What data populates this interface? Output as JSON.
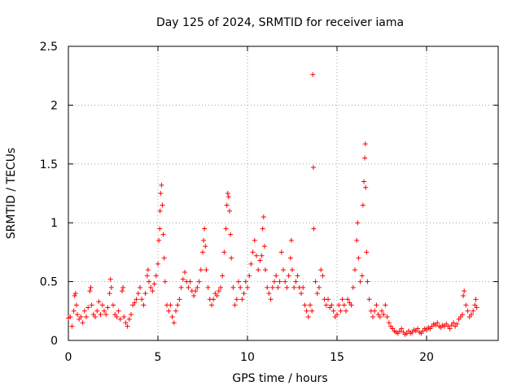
{
  "chart_data": {
    "type": "scatter",
    "title": "Day 125 of 2024, SRMTID for receiver iama",
    "xlabel": "GPS time / hours",
    "ylabel": "SRMTID / TECUs",
    "xlim": [
      0,
      24
    ],
    "ylim": [
      0,
      2.5
    ],
    "grid": true,
    "marker": "+",
    "color": "#ff0000",
    "xticks": [
      0,
      5,
      10,
      15,
      20
    ],
    "xtick_labels": [
      "0",
      "5",
      "10",
      "15",
      "20"
    ],
    "yticks": [
      0,
      0.5,
      1,
      1.5,
      2,
      2.5
    ],
    "ytick_labels": [
      "0",
      "0.5",
      "1",
      "1.5",
      "2",
      "2.5"
    ],
    "series": [
      {
        "name": "SRMTID",
        "points": [
          [
            0.0,
            0.19
          ],
          [
            0.1,
            0.2
          ],
          [
            0.2,
            0.12
          ],
          [
            0.3,
            0.25
          ],
          [
            0.35,
            0.38
          ],
          [
            0.4,
            0.4
          ],
          [
            0.45,
            0.3
          ],
          [
            0.5,
            0.22
          ],
          [
            0.6,
            0.18
          ],
          [
            0.7,
            0.2
          ],
          [
            0.8,
            0.15
          ],
          [
            0.9,
            0.25
          ],
          [
            1.0,
            0.2
          ],
          [
            1.1,
            0.28
          ],
          [
            1.2,
            0.42
          ],
          [
            1.25,
            0.45
          ],
          [
            1.3,
            0.3
          ],
          [
            1.4,
            0.22
          ],
          [
            1.5,
            0.2
          ],
          [
            1.6,
            0.25
          ],
          [
            1.7,
            0.33
          ],
          [
            1.8,
            0.22
          ],
          [
            1.9,
            0.3
          ],
          [
            2.0,
            0.25
          ],
          [
            2.1,
            0.22
          ],
          [
            2.2,
            0.28
          ],
          [
            2.3,
            0.4
          ],
          [
            2.35,
            0.52
          ],
          [
            2.4,
            0.45
          ],
          [
            2.5,
            0.3
          ],
          [
            2.6,
            0.22
          ],
          [
            2.7,
            0.2
          ],
          [
            2.8,
            0.25
          ],
          [
            2.9,
            0.18
          ],
          [
            3.0,
            0.42
          ],
          [
            3.05,
            0.45
          ],
          [
            3.1,
            0.2
          ],
          [
            3.2,
            0.15
          ],
          [
            3.3,
            0.12
          ],
          [
            3.4,
            0.18
          ],
          [
            3.5,
            0.22
          ],
          [
            3.6,
            0.3
          ],
          [
            3.7,
            0.32
          ],
          [
            3.8,
            0.35
          ],
          [
            3.9,
            0.4
          ],
          [
            4.0,
            0.45
          ],
          [
            4.1,
            0.35
          ],
          [
            4.2,
            0.3
          ],
          [
            4.3,
            0.4
          ],
          [
            4.4,
            0.55
          ],
          [
            4.45,
            0.6
          ],
          [
            4.5,
            0.5
          ],
          [
            4.6,
            0.45
          ],
          [
            4.7,
            0.42
          ],
          [
            4.8,
            0.48
          ],
          [
            4.9,
            0.55
          ],
          [
            5.0,
            0.65
          ],
          [
            5.05,
            0.85
          ],
          [
            5.1,
            0.95
          ],
          [
            5.12,
            1.1
          ],
          [
            5.15,
            1.25
          ],
          [
            5.2,
            1.32
          ],
          [
            5.25,
            1.15
          ],
          [
            5.3,
            0.9
          ],
          [
            5.35,
            0.7
          ],
          [
            5.4,
            0.5
          ],
          [
            5.5,
            0.3
          ],
          [
            5.6,
            0.25
          ],
          [
            5.7,
            0.3
          ],
          [
            5.8,
            0.2
          ],
          [
            5.9,
            0.15
          ],
          [
            6.0,
            0.25
          ],
          [
            6.1,
            0.3
          ],
          [
            6.2,
            0.35
          ],
          [
            6.3,
            0.45
          ],
          [
            6.4,
            0.52
          ],
          [
            6.5,
            0.58
          ],
          [
            6.6,
            0.5
          ],
          [
            6.7,
            0.45
          ],
          [
            6.8,
            0.5
          ],
          [
            6.9,
            0.42
          ],
          [
            7.0,
            0.38
          ],
          [
            7.1,
            0.42
          ],
          [
            7.2,
            0.45
          ],
          [
            7.3,
            0.5
          ],
          [
            7.4,
            0.6
          ],
          [
            7.5,
            0.75
          ],
          [
            7.55,
            0.85
          ],
          [
            7.6,
            0.95
          ],
          [
            7.65,
            0.8
          ],
          [
            7.7,
            0.6
          ],
          [
            7.8,
            0.45
          ],
          [
            7.9,
            0.35
          ],
          [
            8.0,
            0.3
          ],
          [
            8.1,
            0.35
          ],
          [
            8.2,
            0.4
          ],
          [
            8.3,
            0.38
          ],
          [
            8.4,
            0.42
          ],
          [
            8.5,
            0.45
          ],
          [
            8.6,
            0.55
          ],
          [
            8.7,
            0.75
          ],
          [
            8.8,
            0.95
          ],
          [
            8.85,
            1.15
          ],
          [
            8.9,
            1.25
          ],
          [
            8.95,
            1.22
          ],
          [
            9.0,
            1.1
          ],
          [
            9.05,
            0.9
          ],
          [
            9.1,
            0.7
          ],
          [
            9.2,
            0.45
          ],
          [
            9.3,
            0.3
          ],
          [
            9.4,
            0.35
          ],
          [
            9.5,
            0.5
          ],
          [
            9.6,
            0.45
          ],
          [
            9.7,
            0.35
          ],
          [
            9.8,
            0.4
          ],
          [
            9.9,
            0.5
          ],
          [
            10.0,
            0.45
          ],
          [
            10.1,
            0.55
          ],
          [
            10.2,
            0.65
          ],
          [
            10.3,
            0.75
          ],
          [
            10.4,
            0.85
          ],
          [
            10.5,
            0.72
          ],
          [
            10.6,
            0.6
          ],
          [
            10.7,
            0.68
          ],
          [
            10.8,
            0.72
          ],
          [
            10.85,
            0.95
          ],
          [
            10.9,
            1.05
          ],
          [
            10.95,
            0.8
          ],
          [
            11.0,
            0.6
          ],
          [
            11.1,
            0.45
          ],
          [
            11.2,
            0.4
          ],
          [
            11.3,
            0.35
          ],
          [
            11.4,
            0.45
          ],
          [
            11.5,
            0.5
          ],
          [
            11.6,
            0.55
          ],
          [
            11.7,
            0.45
          ],
          [
            11.8,
            0.5
          ],
          [
            11.9,
            0.75
          ],
          [
            12.0,
            0.6
          ],
          [
            12.1,
            0.5
          ],
          [
            12.2,
            0.45
          ],
          [
            12.3,
            0.55
          ],
          [
            12.4,
            0.7
          ],
          [
            12.45,
            0.85
          ],
          [
            12.5,
            0.6
          ],
          [
            12.6,
            0.45
          ],
          [
            12.7,
            0.5
          ],
          [
            12.8,
            0.55
          ],
          [
            12.9,
            0.45
          ],
          [
            13.0,
            0.4
          ],
          [
            13.1,
            0.45
          ],
          [
            13.2,
            0.3
          ],
          [
            13.3,
            0.25
          ],
          [
            13.4,
            0.2
          ],
          [
            13.5,
            0.3
          ],
          [
            13.6,
            0.25
          ],
          [
            13.65,
            2.26
          ],
          [
            13.68,
            1.47
          ],
          [
            13.7,
            0.95
          ],
          [
            13.8,
            0.5
          ],
          [
            13.9,
            0.4
          ],
          [
            14.0,
            0.45
          ],
          [
            14.1,
            0.6
          ],
          [
            14.2,
            0.55
          ],
          [
            14.3,
            0.35
          ],
          [
            14.4,
            0.3
          ],
          [
            14.5,
            0.35
          ],
          [
            14.6,
            0.28
          ],
          [
            14.7,
            0.3
          ],
          [
            14.8,
            0.25
          ],
          [
            14.9,
            0.2
          ],
          [
            15.0,
            0.22
          ],
          [
            15.1,
            0.3
          ],
          [
            15.2,
            0.25
          ],
          [
            15.3,
            0.35
          ],
          [
            15.4,
            0.3
          ],
          [
            15.5,
            0.25
          ],
          [
            15.6,
            0.35
          ],
          [
            15.7,
            0.32
          ],
          [
            15.8,
            0.3
          ],
          [
            15.9,
            0.45
          ],
          [
            16.0,
            0.6
          ],
          [
            16.1,
            0.85
          ],
          [
            16.15,
            1.0
          ],
          [
            16.2,
            0.7
          ],
          [
            16.3,
            0.5
          ],
          [
            16.4,
            0.55
          ],
          [
            16.45,
            1.15
          ],
          [
            16.5,
            1.35
          ],
          [
            16.55,
            1.55
          ],
          [
            16.58,
            1.67
          ],
          [
            16.6,
            1.3
          ],
          [
            16.65,
            0.75
          ],
          [
            16.7,
            0.5
          ],
          [
            16.8,
            0.35
          ],
          [
            16.9,
            0.25
          ],
          [
            17.0,
            0.2
          ],
          [
            17.1,
            0.25
          ],
          [
            17.2,
            0.3
          ],
          [
            17.3,
            0.22
          ],
          [
            17.4,
            0.2
          ],
          [
            17.5,
            0.25
          ],
          [
            17.6,
            0.22
          ],
          [
            17.7,
            0.3
          ],
          [
            17.8,
            0.2
          ],
          [
            17.9,
            0.15
          ],
          [
            18.0,
            0.12
          ],
          [
            18.1,
            0.1
          ],
          [
            18.2,
            0.08
          ],
          [
            18.3,
            0.07
          ],
          [
            18.4,
            0.06
          ],
          [
            18.5,
            0.08
          ],
          [
            18.6,
            0.1
          ],
          [
            18.7,
            0.07
          ],
          [
            18.8,
            0.05
          ],
          [
            18.9,
            0.06
          ],
          [
            19.0,
            0.08
          ],
          [
            19.1,
            0.06
          ],
          [
            19.2,
            0.07
          ],
          [
            19.3,
            0.09
          ],
          [
            19.4,
            0.08
          ],
          [
            19.5,
            0.1
          ],
          [
            19.6,
            0.07
          ],
          [
            19.7,
            0.06
          ],
          [
            19.8,
            0.08
          ],
          [
            19.9,
            0.1
          ],
          [
            20.0,
            0.09
          ],
          [
            20.1,
            0.11
          ],
          [
            20.2,
            0.1
          ],
          [
            20.3,
            0.12
          ],
          [
            20.4,
            0.14
          ],
          [
            20.5,
            0.13
          ],
          [
            20.6,
            0.15
          ],
          [
            20.7,
            0.12
          ],
          [
            20.8,
            0.11
          ],
          [
            20.9,
            0.13
          ],
          [
            21.0,
            0.12
          ],
          [
            21.1,
            0.14
          ],
          [
            21.2,
            0.12
          ],
          [
            21.3,
            0.1
          ],
          [
            21.4,
            0.13
          ],
          [
            21.5,
            0.15
          ],
          [
            21.6,
            0.12
          ],
          [
            21.7,
            0.14
          ],
          [
            21.8,
            0.18
          ],
          [
            21.9,
            0.2
          ],
          [
            22.0,
            0.22
          ],
          [
            22.05,
            0.38
          ],
          [
            22.1,
            0.42
          ],
          [
            22.2,
            0.3
          ],
          [
            22.3,
            0.25
          ],
          [
            22.4,
            0.2
          ],
          [
            22.5,
            0.22
          ],
          [
            22.6,
            0.25
          ],
          [
            22.7,
            0.3
          ],
          [
            22.75,
            0.35
          ],
          [
            22.8,
            0.28
          ]
        ]
      }
    ]
  }
}
